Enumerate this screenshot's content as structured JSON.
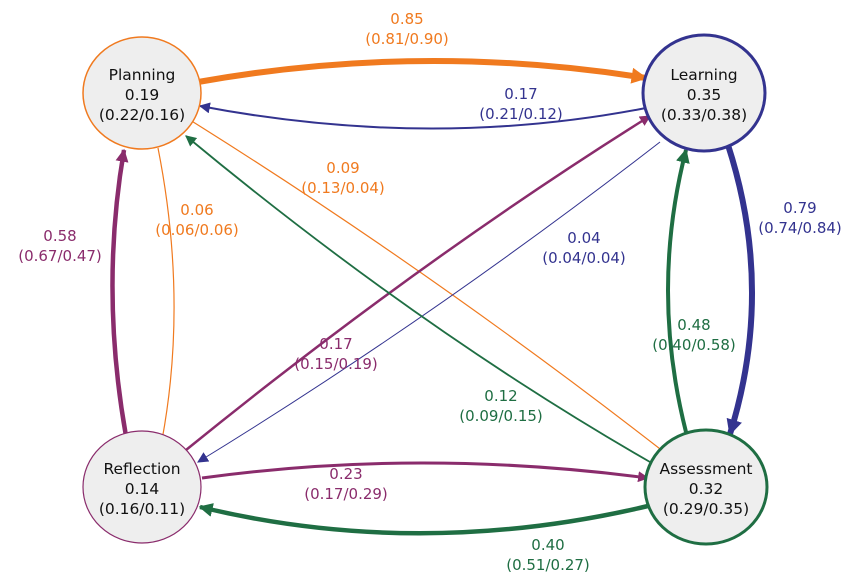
{
  "colors": {
    "orange": "#f07a1f",
    "navy": "#33338f",
    "green": "#1f6e43",
    "purple": "#8a2c6c",
    "node_fill": "#eeeeee"
  },
  "nodes": {
    "planning": {
      "name": "Planning",
      "value": "0.19",
      "ci": "(0.22/0.16)"
    },
    "learning": {
      "name": "Learning",
      "value": "0.35",
      "ci": "(0.33/0.38)"
    },
    "reflection": {
      "name": "Reflection",
      "value": "0.14",
      "ci": "(0.16/0.11)"
    },
    "assessment": {
      "name": "Assessment",
      "value": "0.32",
      "ci": "(0.29/0.35)"
    }
  },
  "edges": {
    "planning_learning": {
      "value": "0.85",
      "ci": "(0.81/0.90)"
    },
    "learning_planning": {
      "value": "0.17",
      "ci": "(0.21/0.12)"
    },
    "planning_assessment": {
      "value": "0.09",
      "ci": "(0.13/0.04)"
    },
    "planning_reflection": {
      "value": "0.06",
      "ci": "(0.06/0.06)"
    },
    "reflection_planning": {
      "value": "0.58",
      "ci": "(0.67/0.47)"
    },
    "learning_assessment": {
      "value": "0.79",
      "ci": "(0.74/0.84)"
    },
    "learning_reflection": {
      "value": "0.04",
      "ci": "(0.04/0.04)"
    },
    "assessment_learning": {
      "value": "0.48",
      "ci": "(0.40/0.58)"
    },
    "reflection_learning": {
      "value": "0.17",
      "ci": "(0.15/0.19)"
    },
    "assessment_planning": {
      "value": "0.12",
      "ci": "(0.09/0.15)"
    },
    "reflection_assessment": {
      "value": "0.23",
      "ci": "(0.17/0.29)"
    },
    "assessment_reflection": {
      "value": "0.40",
      "ci": "(0.51/0.27)"
    }
  }
}
